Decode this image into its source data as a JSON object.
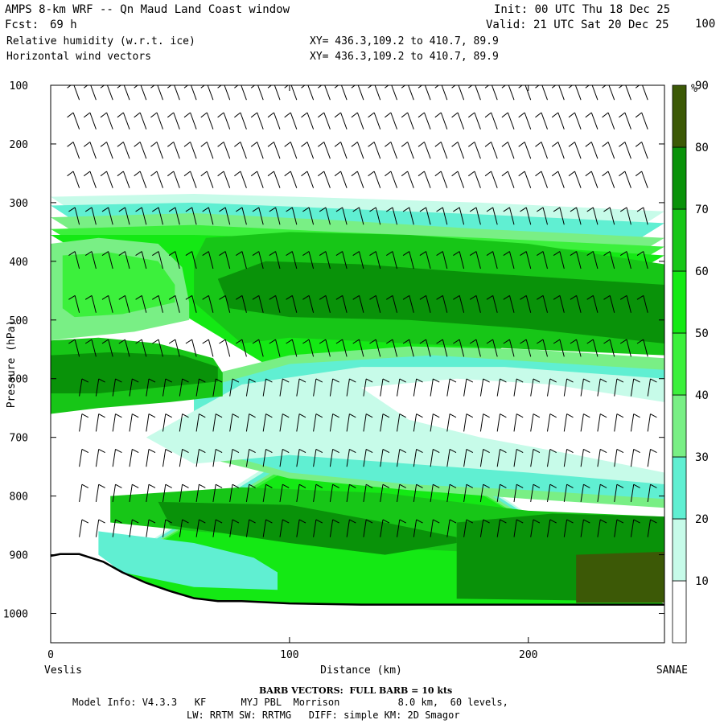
{
  "header": {
    "title": "AMPS 8-km WRF -- Qn Maud Land Coast window",
    "fcst_label": "Fcst:",
    "fcst_value": "69 h",
    "init": "Init: 00 UTC Thu 18 Dec 25",
    "valid": "Valid: 21 UTC Sat 20 Dec 25",
    "field1": "Relative humidity (w.r.t. ice)",
    "field2": "Horizontal wind vectors",
    "xy1": "XY= 436.3,109.2 to 410.7, 89.9",
    "xy2": "XY= 436.3,109.2 to 410.7, 89.9"
  },
  "footer": {
    "barb_note": "BARB VECTORS:  FULL BARB = 10 kts",
    "model_info": "Model Info: V4.3.3   KF      MYJ PBL  Morrison          8.0 km,  60 levels,",
    "model_info2": "LW: RRTM SW: RRTMG   DIFF: simple KM: 2D Smagor"
  },
  "chart_data": {
    "type": "heatmap",
    "title": "",
    "xlabel": "Distance (km)",
    "ylabel": "Pressure (hPa)",
    "xlim": [
      0,
      257
    ],
    "ylim": [
      1050,
      100
    ],
    "x_ticks": [
      0,
      100,
      200
    ],
    "y_ticks": [
      100,
      200,
      300,
      400,
      500,
      600,
      700,
      800,
      900,
      1000
    ],
    "x_end_labels": {
      "left": "Veslis",
      "right": "SANAE"
    },
    "colorbar": {
      "unit": "%",
      "ticks": [
        10,
        20,
        30,
        40,
        50,
        60,
        70,
        80,
        90,
        100
      ],
      "bins": [
        {
          "min": 0,
          "max": 30,
          "color": "#ffffff"
        },
        {
          "min": 30,
          "max": 40,
          "color": "#c7fbe9"
        },
        {
          "min": 40,
          "max": 50,
          "color": "#60efd2"
        },
        {
          "min": 50,
          "max": 60,
          "color": "#79ef85"
        },
        {
          "min": 60,
          "max": 70,
          "color": "#3cf03c"
        },
        {
          "min": 70,
          "max": 80,
          "color": "#14e914"
        },
        {
          "min": 80,
          "max": 90,
          "color": "#17c617"
        },
        {
          "min": 90,
          "max": 100,
          "color": "#099209"
        },
        {
          "min": 100,
          "max": 110,
          "color": "#3c5906"
        }
      ]
    },
    "terrain_profile": [
      [
        0,
        902
      ],
      [
        4,
        899
      ],
      [
        12,
        899
      ],
      [
        22,
        912
      ],
      [
        30,
        930
      ],
      [
        40,
        948
      ],
      [
        50,
        962
      ],
      [
        60,
        974
      ],
      [
        70,
        979
      ],
      [
        80,
        979
      ],
      [
        100,
        983
      ],
      [
        130,
        985
      ],
      [
        160,
        985
      ],
      [
        200,
        985
      ],
      [
        257,
        985
      ]
    ],
    "rh_layers": [
      {
        "rh": 35,
        "top": [
          [
            0,
            290
          ],
          [
            60,
            285
          ],
          [
            120,
            292
          ],
          [
            180,
            300
          ],
          [
            257,
            315
          ]
        ],
        "bot": [
          [
            0,
            985
          ],
          [
            257,
            985
          ]
        ]
      },
      {
        "rh": 45,
        "top": [
          [
            0,
            305
          ],
          [
            60,
            300
          ],
          [
            120,
            310
          ],
          [
            180,
            320
          ],
          [
            257,
            335
          ]
        ],
        "bot": [
          [
            0,
            985
          ],
          [
            257,
            985
          ]
        ]
      },
      {
        "rh": 55,
        "top": [
          [
            0,
            325
          ],
          [
            60,
            318
          ],
          [
            120,
            330
          ],
          [
            180,
            345
          ],
          [
            257,
            360
          ]
        ],
        "bot": [
          [
            0,
            985
          ],
          [
            257,
            985
          ]
        ]
      },
      {
        "rh": 65,
        "top": [
          [
            0,
            345
          ],
          [
            60,
            338
          ],
          [
            120,
            350
          ],
          [
            180,
            360
          ],
          [
            257,
            375
          ]
        ],
        "bot": [
          [
            0,
            985
          ],
          [
            257,
            985
          ]
        ]
      },
      {
        "rh": 75,
        "top": [
          [
            0,
            355
          ],
          [
            60,
            355
          ],
          [
            100,
            360
          ],
          [
            180,
            370
          ],
          [
            257,
            390
          ]
        ],
        "bot": [
          [
            0,
            985
          ],
          [
            257,
            985
          ]
        ]
      },
      {
        "rh": 85,
        "top": [
          [
            60,
            400
          ],
          [
            65,
            360
          ],
          [
            100,
            350
          ],
          [
            150,
            355
          ],
          [
            200,
            370
          ],
          [
            257,
            405
          ]
        ],
        "bot": [
          [
            257,
            560
          ],
          [
            200,
            550
          ],
          [
            150,
            540
          ],
          [
            100,
            530
          ],
          [
            80,
            540
          ],
          [
            60,
            470
          ]
        ]
      },
      {
        "rh": 95,
        "top": [
          [
            70,
            430
          ],
          [
            90,
            400
          ],
          [
            130,
            405
          ],
          [
            180,
            420
          ],
          [
            257,
            440
          ]
        ],
        "bot": [
          [
            257,
            540
          ],
          [
            200,
            515
          ],
          [
            150,
            500
          ],
          [
            100,
            495
          ],
          [
            75,
            480
          ]
        ]
      },
      {
        "rh": 55,
        "top": [
          [
            60,
            600
          ],
          [
            100,
            560
          ],
          [
            150,
            545
          ],
          [
            200,
            550
          ],
          [
            257,
            565
          ]
        ],
        "bot": [
          [
            257,
            820
          ],
          [
            200,
            805
          ],
          [
            150,
            790
          ],
          [
            100,
            770
          ],
          [
            60,
            730
          ]
        ]
      },
      {
        "rh": 45,
        "top": [
          [
            60,
            620
          ],
          [
            100,
            575
          ],
          [
            160,
            560
          ],
          [
            257,
            585
          ]
        ],
        "bot": [
          [
            257,
            805
          ],
          [
            200,
            790
          ],
          [
            150,
            780
          ],
          [
            100,
            760
          ],
          [
            60,
            715
          ]
        ]
      },
      {
        "rh": 35,
        "top": [
          [
            40,
            700
          ],
          [
            80,
            610
          ],
          [
            130,
            580
          ],
          [
            190,
            580
          ],
          [
            257,
            600
          ]
        ],
        "bot": [
          [
            257,
            780
          ],
          [
            200,
            760
          ],
          [
            150,
            745
          ],
          [
            100,
            730
          ],
          [
            60,
            745
          ]
        ]
      },
      {
        "rh": 25,
        "top": [
          [
            130,
            615
          ],
          [
            170,
            600
          ],
          [
            210,
            610
          ],
          [
            257,
            640
          ]
        ],
        "bot": [
          [
            257,
            760
          ],
          [
            220,
            730
          ],
          [
            180,
            700
          ],
          [
            150,
            670
          ]
        ]
      },
      {
        "rh": 85,
        "top": [
          [
            0,
            535
          ],
          [
            20,
            530
          ],
          [
            45,
            540
          ],
          [
            68,
            565
          ],
          [
            72,
            590
          ]
        ],
        "bot": [
          [
            72,
            630
          ],
          [
            50,
            640
          ],
          [
            20,
            650
          ],
          [
            0,
            660
          ]
        ]
      },
      {
        "rh": 95,
        "top": [
          [
            0,
            560
          ],
          [
            25,
            555
          ],
          [
            55,
            560
          ],
          [
            70,
            580
          ]
        ],
        "bot": [
          [
            70,
            605
          ],
          [
            45,
            615
          ],
          [
            20,
            625
          ],
          [
            0,
            625
          ]
        ]
      },
      {
        "rh": 55,
        "top": [
          [
            0,
            370
          ],
          [
            20,
            360
          ],
          [
            45,
            370
          ],
          [
            55,
            410
          ],
          [
            58,
            470
          ]
        ],
        "bot": [
          [
            58,
            500
          ],
          [
            35,
            520
          ],
          [
            10,
            530
          ],
          [
            0,
            535
          ]
        ]
      },
      {
        "rh": 65,
        "top": [
          [
            5,
            390
          ],
          [
            25,
            385
          ],
          [
            45,
            400
          ],
          [
            52,
            440
          ]
        ],
        "bot": [
          [
            52,
            470
          ],
          [
            30,
            490
          ],
          [
            10,
            495
          ],
          [
            5,
            480
          ]
        ]
      },
      {
        "rh": 85,
        "top": [
          [
            25,
            800
          ],
          [
            80,
            785
          ],
          [
            140,
            795
          ],
          [
            200,
            825
          ],
          [
            257,
            835
          ]
        ],
        "bot": [
          [
            257,
            910
          ],
          [
            200,
            900
          ],
          [
            150,
            890
          ],
          [
            100,
            870
          ],
          [
            60,
            860
          ],
          [
            25,
            845
          ]
        ]
      },
      {
        "rh": 95,
        "top": [
          [
            45,
            810
          ],
          [
            100,
            815
          ],
          [
            140,
            845
          ],
          [
            170,
            870
          ]
        ],
        "bot": [
          [
            170,
            880
          ],
          [
            140,
            900
          ],
          [
            100,
            880
          ],
          [
            50,
            850
          ]
        ]
      },
      {
        "rh": 95,
        "top": [
          [
            170,
            845
          ],
          [
            210,
            830
          ],
          [
            257,
            835
          ]
        ],
        "bot": [
          [
            257,
            980
          ],
          [
            170,
            975
          ]
        ]
      },
      {
        "rh": 105,
        "top": [
          [
            220,
            900
          ],
          [
            257,
            895
          ]
        ],
        "bot": [
          [
            257,
            982
          ],
          [
            220,
            982
          ]
        ]
      },
      {
        "rh": 45,
        "top": [
          [
            20,
            860
          ],
          [
            60,
            880
          ],
          [
            85,
            905
          ],
          [
            95,
            930
          ]
        ],
        "bot": [
          [
            95,
            960
          ],
          [
            60,
            955
          ],
          [
            30,
            930
          ],
          [
            20,
            900
          ]
        ]
      }
    ],
    "wind_barbs": {
      "x_spacing_km": 7,
      "upper_levels": [
        {
          "p_range": [
            100,
            300
          ],
          "barbs_per_column": 4
        },
        {
          "p_range": [
            300,
            600
          ],
          "barbs_per_column": 4
        },
        {
          "p_range": [
            600,
            900
          ],
          "barbs_per_column": 5
        }
      ]
    }
  }
}
